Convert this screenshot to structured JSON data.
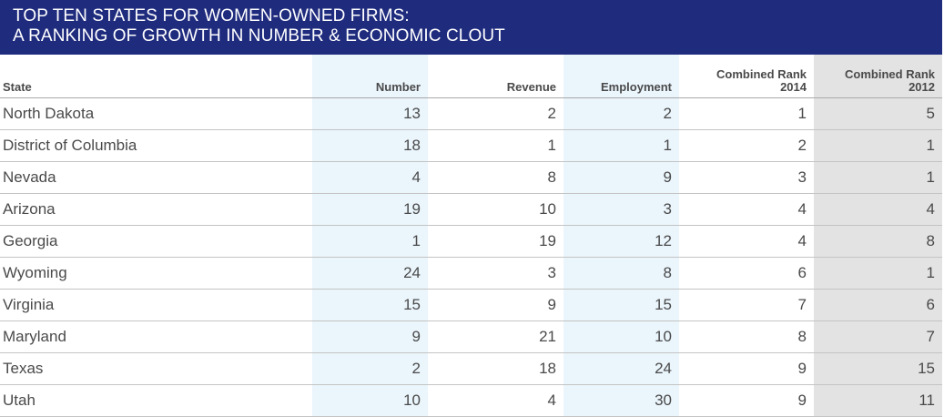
{
  "title": {
    "line1": "TOP TEN STATES FOR WOMEN-OWNED FIRMS:",
    "line2": "A RANKING OF GROWTH IN NUMBER & ECONOMIC CLOUT"
  },
  "colors": {
    "title_background": "#1f2c7e",
    "shaded_column_blue": "#eaf5fc",
    "shaded_column_gray": "#e3e3e3"
  },
  "chart_data": {
    "type": "table",
    "title": "TOP TEN STATES FOR WOMEN-OWNED FIRMS: A RANKING OF GROWTH IN NUMBER & ECONOMIC CLOUT",
    "columns": [
      {
        "key": "state",
        "label": "State",
        "label_lines": [
          "State"
        ]
      },
      {
        "key": "number",
        "label": "Number",
        "label_lines": [
          "Number"
        ]
      },
      {
        "key": "revenue",
        "label": "Revenue",
        "label_lines": [
          "Revenue"
        ]
      },
      {
        "key": "employment",
        "label": "Employment",
        "label_lines": [
          "Employment"
        ]
      },
      {
        "key": "rank2014",
        "label": "Combined Rank 2014",
        "label_lines": [
          "Combined Rank",
          "2014"
        ]
      },
      {
        "key": "rank2012",
        "label": "Combined Rank 2012",
        "label_lines": [
          "Combined Rank",
          "2012"
        ]
      }
    ],
    "rows": [
      {
        "state": "North Dakota",
        "number": 13,
        "revenue": 2,
        "employment": 2,
        "rank2014": 1,
        "rank2012": 5
      },
      {
        "state": "District of Columbia",
        "number": 18,
        "revenue": 1,
        "employment": 1,
        "rank2014": 2,
        "rank2012": 1
      },
      {
        "state": "Nevada",
        "number": 4,
        "revenue": 8,
        "employment": 9,
        "rank2014": 3,
        "rank2012": 1
      },
      {
        "state": "Arizona",
        "number": 19,
        "revenue": 10,
        "employment": 3,
        "rank2014": 4,
        "rank2012": 4
      },
      {
        "state": "Georgia",
        "number": 1,
        "revenue": 19,
        "employment": 12,
        "rank2014": 4,
        "rank2012": 8
      },
      {
        "state": "Wyoming",
        "number": 24,
        "revenue": 3,
        "employment": 8,
        "rank2014": 6,
        "rank2012": 1
      },
      {
        "state": "Virginia",
        "number": 15,
        "revenue": 9,
        "employment": 15,
        "rank2014": 7,
        "rank2012": 6
      },
      {
        "state": "Maryland",
        "number": 9,
        "revenue": 21,
        "employment": 10,
        "rank2014": 8,
        "rank2012": 7
      },
      {
        "state": "Texas",
        "number": 2,
        "revenue": 18,
        "employment": 24,
        "rank2014": 9,
        "rank2012": 15
      },
      {
        "state": "Utah",
        "number": 10,
        "revenue": 4,
        "employment": 30,
        "rank2014": 9,
        "rank2012": 11
      }
    ]
  }
}
